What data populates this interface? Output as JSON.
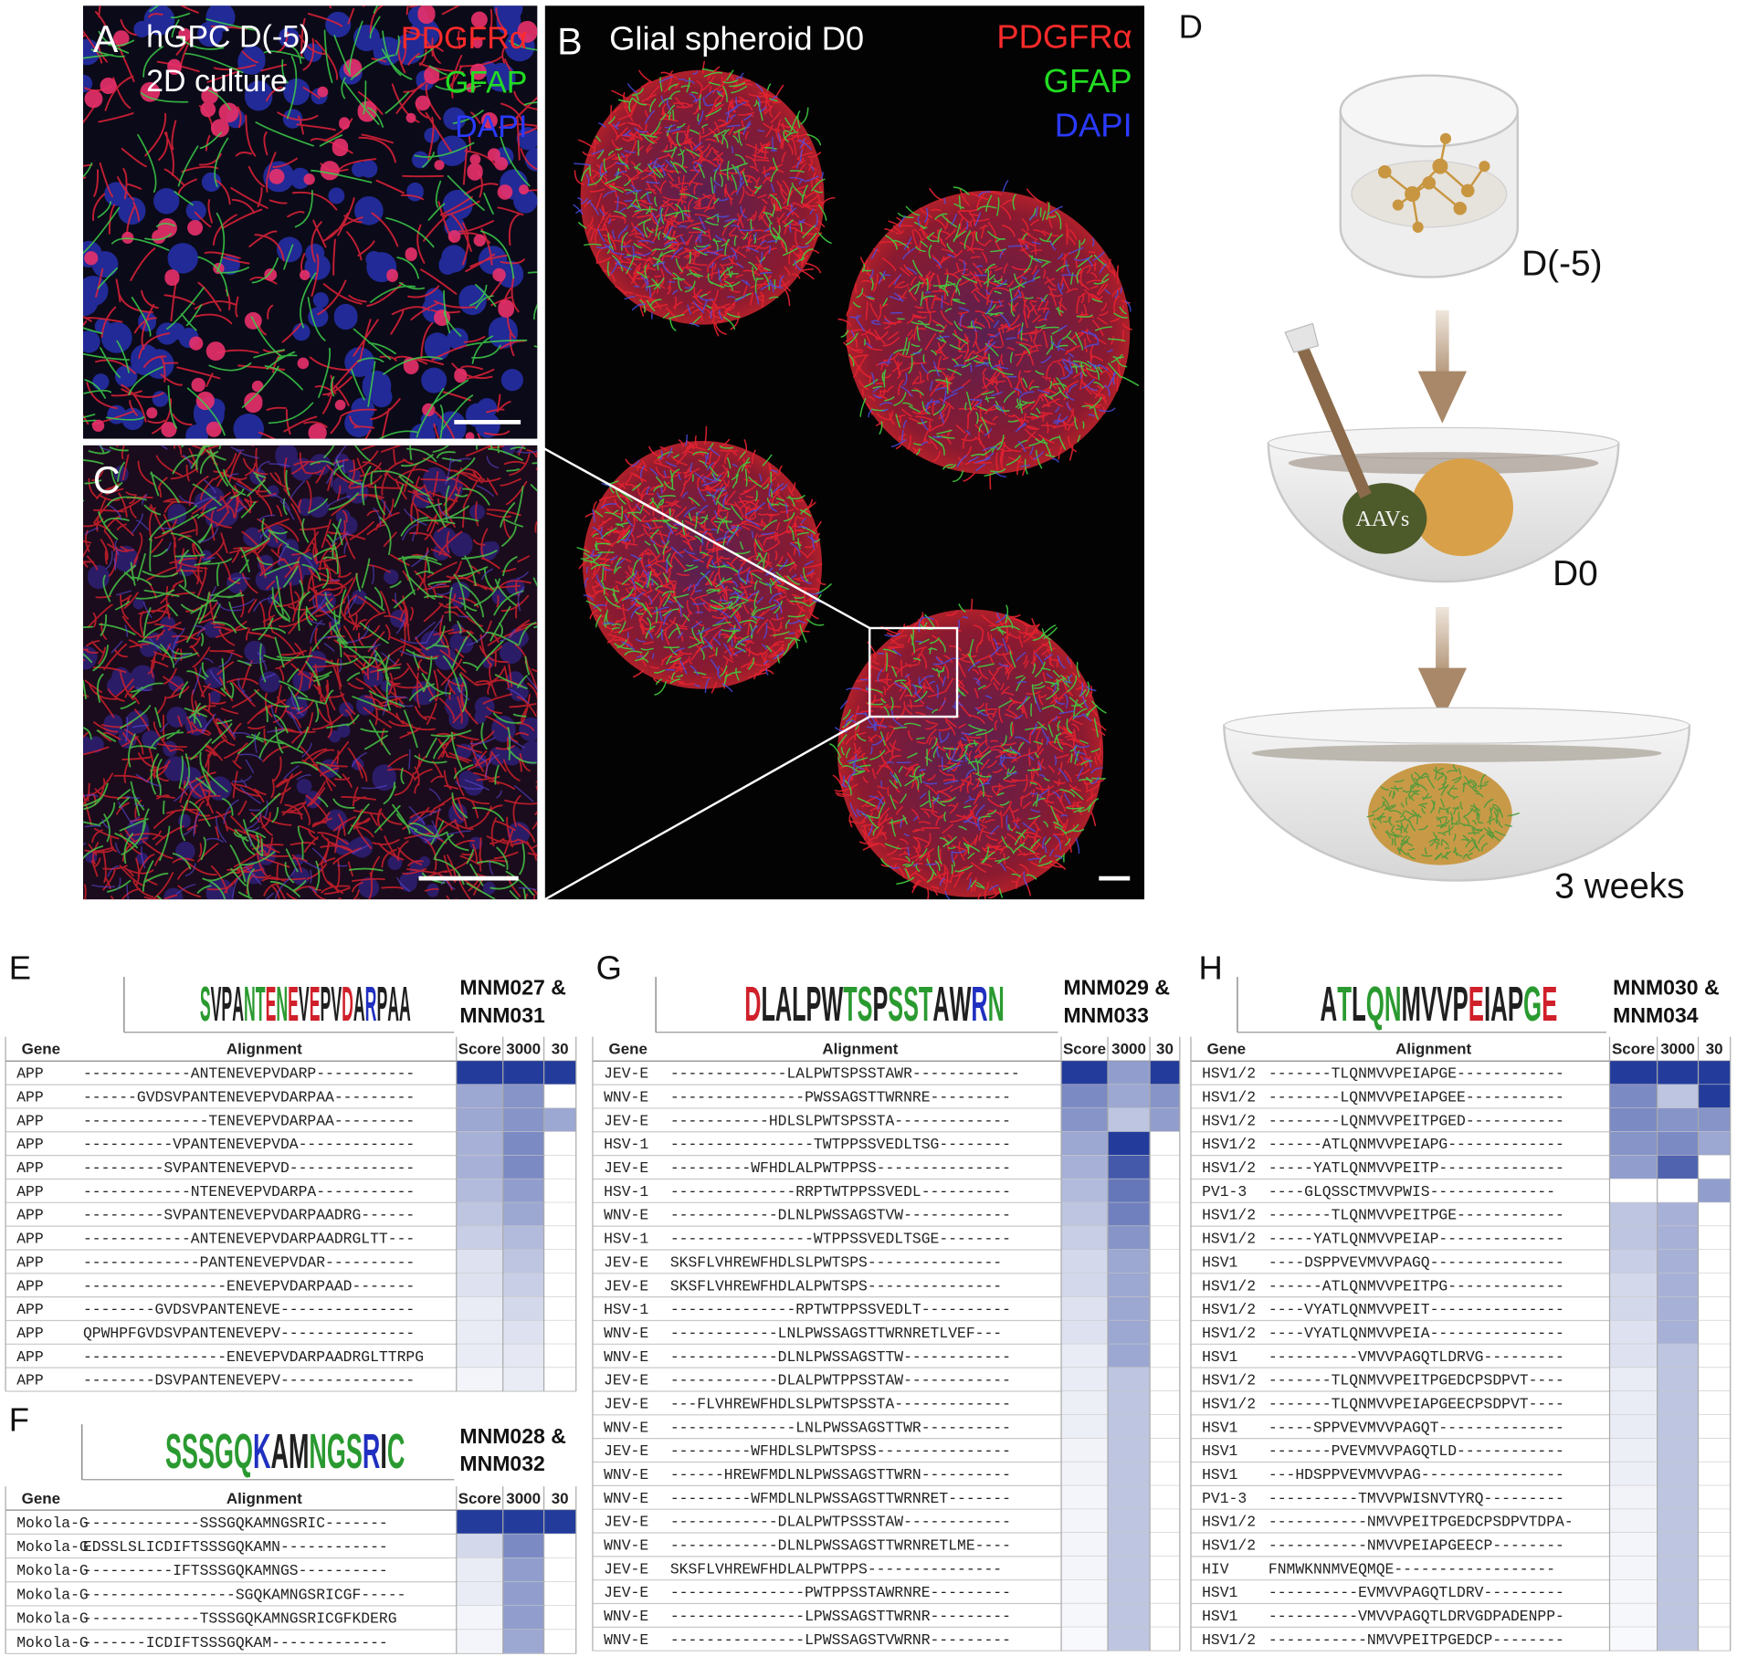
{
  "panels": {
    "A": {
      "label": "A",
      "title": [
        "hGPC D(-5)",
        "2D culture"
      ],
      "stains": [
        "PDGFRα",
        "GFAP",
        "DAPI"
      ]
    },
    "B": {
      "label": "B",
      "title": [
        "Glial spheroid D0"
      ],
      "stains": [
        "PDGFRα",
        "GFAP",
        "DAPI"
      ]
    },
    "C": {
      "label": "C"
    },
    "D": {
      "label": "D",
      "stages": [
        "D(-5)",
        "D0",
        "3 weeks"
      ],
      "vector": "AAVs"
    }
  },
  "tables": [
    {
      "label": "E",
      "logo": "SVPANTENEVEPVDARPAA",
      "title": [
        "MNM027 &",
        "MNM031"
      ],
      "columns": [
        "Gene",
        "Alignment",
        "Score",
        "3000",
        "30"
      ],
      "rows": [
        {
          "gene": "APP",
          "alignment": "------------ANTENEVEPVDARP-----------",
          "shades": [
            1,
            1,
            1
          ]
        },
        {
          "gene": "APP",
          "alignment": "------GVDSVPANTENEVEPVDARPAA---------",
          "shades": [
            0.45,
            0.55,
            0
          ]
        },
        {
          "gene": "APP",
          "alignment": "--------------TENEVEPVDARPAA---------",
          "shades": [
            0.45,
            0.55,
            0.45
          ]
        },
        {
          "gene": "APP",
          "alignment": "----------VPANTENEVEPVDA-------------",
          "shades": [
            0.4,
            0.6,
            0
          ]
        },
        {
          "gene": "APP",
          "alignment": "---------SVPANTENEVEPVD--------------",
          "shades": [
            0.4,
            0.6,
            0
          ]
        },
        {
          "gene": "APP",
          "alignment": "------------NTENEVEPVDARPA-----------",
          "shades": [
            0.35,
            0.5,
            0
          ]
        },
        {
          "gene": "APP",
          "alignment": "---------SVPANTENEVEPVDARPAADRG------",
          "shades": [
            0.3,
            0.45,
            0
          ]
        },
        {
          "gene": "APP",
          "alignment": "------------ANTENEVEPVDARPAADRGLTT---",
          "shades": [
            0.25,
            0.35,
            0
          ]
        },
        {
          "gene": "APP",
          "alignment": "-------------PANTENEVEPVDAR----------",
          "shades": [
            0.15,
            0.3,
            0
          ]
        },
        {
          "gene": "APP",
          "alignment": "----------------ENEVEPVDARPAAD-------",
          "shades": [
            0.15,
            0.25,
            0
          ]
        },
        {
          "gene": "APP",
          "alignment": "--------GVDSVPANTENEVE---------------",
          "shades": [
            0.1,
            0.2,
            0
          ]
        },
        {
          "gene": "APP",
          "alignment": "QPWHPFGVDSVPANTENEVEPV---------------",
          "shades": [
            0.1,
            0.15,
            0
          ]
        },
        {
          "gene": "APP",
          "alignment": "----------------ENEVEPVDARPAADRGLTTRPG",
          "shades": [
            0.1,
            0.12,
            0
          ]
        },
        {
          "gene": "APP",
          "alignment": "--------DSVPANTENEVEPV---------------",
          "shades": [
            0.05,
            0.1,
            0
          ]
        }
      ]
    },
    {
      "label": "F",
      "logo": "SSSGQKAMNGSRIC",
      "title": [
        "MNM028 &",
        "MNM032"
      ],
      "columns": [
        "Gene",
        "Alignment",
        "Score",
        "3000",
        "30"
      ],
      "rows": [
        {
          "gene": "Mokola-G",
          "alignment": "-------------SSSGQKAMNGSRIC-------",
          "shades": [
            1,
            1,
            1
          ]
        },
        {
          "gene": "Mokola-G",
          "alignment": "EDSSLSLICDIFTSSSGQKAMN------------",
          "shades": [
            0.2,
            0.6,
            0
          ]
        },
        {
          "gene": "Mokola-G",
          "alignment": "----------IFTSSSGQKAMNGS----------",
          "shades": [
            0.1,
            0.5,
            0
          ]
        },
        {
          "gene": "Mokola-G",
          "alignment": "-----------------SGQKAMNGSRICGF-----",
          "shades": [
            0.1,
            0.5,
            0
          ]
        },
        {
          "gene": "Mokola-G",
          "alignment": "-------------TSSSGQKAMNGSRICGFKDERG",
          "shades": [
            0.05,
            0.5,
            0
          ]
        },
        {
          "gene": "Mokola-G",
          "alignment": "-------ICDIFTSSSGQKAM-------------",
          "shades": [
            0.05,
            0.45,
            0
          ]
        }
      ]
    },
    {
      "label": "G",
      "logo": "DLALPWTSPSSTAWRN",
      "title": [
        "MNM029 &",
        "MNM033"
      ],
      "columns": [
        "Gene",
        "Alignment",
        "Score",
        "3000",
        "30"
      ],
      "rows": [
        {
          "gene": "JEV-E",
          "alignment": "-------------LALPWTSPSSTAWR------------",
          "shades": [
            1,
            0.5,
            1
          ]
        },
        {
          "gene": "WNV-E",
          "alignment": "---------------PWSSAGSTTWRNRE---------",
          "shades": [
            0.6,
            0.45,
            0.55
          ]
        },
        {
          "gene": "JEV-E",
          "alignment": "-----------HDLSLPWTSPSSTA-------------",
          "shades": [
            0.55,
            0.3,
            0.5
          ]
        },
        {
          "gene": "HSV-1",
          "alignment": "----------------TWTPPSSVEDLTSG--------",
          "shades": [
            0.45,
            1,
            0
          ]
        },
        {
          "gene": "JEV-E",
          "alignment": "---------WFHDLALPWTPPSS---------------",
          "shades": [
            0.4,
            0.85,
            0
          ]
        },
        {
          "gene": "HSV-1",
          "alignment": "--------------RRPTWTPPSSVEDL----------",
          "shades": [
            0.35,
            0.7,
            0
          ]
        },
        {
          "gene": "WNV-E",
          "alignment": "------------DLNLPWSSAGSTVW------------",
          "shades": [
            0.3,
            0.65,
            0
          ]
        },
        {
          "gene": "HSV-1",
          "alignment": "----------------WTPPSSVEDLTSGE--------",
          "shades": [
            0.25,
            0.55,
            0
          ]
        },
        {
          "gene": "JEV-E",
          "alignment": "SKSFLVHREWFHDLSLPWTSPS---------------",
          "shades": [
            0.2,
            0.45,
            0
          ]
        },
        {
          "gene": "JEV-E",
          "alignment": "SKSFLVHREWFHDLALPWTSPS---------------",
          "shades": [
            0.2,
            0.45,
            0
          ]
        },
        {
          "gene": "HSV-1",
          "alignment": "--------------RPTWTPPSSVEDLT----------",
          "shades": [
            0.15,
            0.45,
            0
          ]
        },
        {
          "gene": "WNV-E",
          "alignment": "------------LNLPWSSAGSTTWRNRETLVEF---",
          "shades": [
            0.15,
            0.45,
            0
          ]
        },
        {
          "gene": "WNV-E",
          "alignment": "------------DLNLPWSSAGSTTW------------",
          "shades": [
            0.1,
            0.45,
            0
          ]
        },
        {
          "gene": "JEV-E",
          "alignment": "------------DLALPWTPPSSTAW------------",
          "shades": [
            0.1,
            0.3,
            0
          ]
        },
        {
          "gene": "JEV-E",
          "alignment": "---FLVHREWFHDLSLPWTSPSSTA-------------",
          "shades": [
            0.08,
            0.3,
            0
          ]
        },
        {
          "gene": "WNV-E",
          "alignment": "--------------LNLPWSSAGSTTWR----------",
          "shades": [
            0.08,
            0.3,
            0
          ]
        },
        {
          "gene": "JEV-E",
          "alignment": "---------WFHDLSLPWTSPSS---------------",
          "shades": [
            0.06,
            0.3,
            0
          ]
        },
        {
          "gene": "WNV-E",
          "alignment": "------HREWFMDLNLPWSSAGSTTWRN----------",
          "shades": [
            0.06,
            0.3,
            0
          ]
        },
        {
          "gene": "WNV-E",
          "alignment": "---------WFMDLNLPWSSAGSTTWRNRET-------",
          "shades": [
            0.05,
            0.3,
            0
          ]
        },
        {
          "gene": "JEV-E",
          "alignment": "------------DLALPWTPSSSTAW------------",
          "shades": [
            0.05,
            0.3,
            0
          ]
        },
        {
          "gene": "WNV-E",
          "alignment": "------------DLNLPWSSAGSTTWRNRETLME----",
          "shades": [
            0.05,
            0.3,
            0
          ]
        },
        {
          "gene": "JEV-E",
          "alignment": "SKSFLVHREWFHDLALPWTPPS---------------",
          "shades": [
            0.05,
            0.3,
            0
          ]
        },
        {
          "gene": "JEV-E",
          "alignment": "---------------PWTPPSSTAWRNRE---------",
          "shades": [
            0.04,
            0.3,
            0
          ]
        },
        {
          "gene": "WNV-E",
          "alignment": "---------------LPWSSAGSTTWRNR---------",
          "shades": [
            0.04,
            0.3,
            0
          ]
        },
        {
          "gene": "WNV-E",
          "alignment": "---------------LPWSSAGSTVWRNR---------",
          "shades": [
            0.03,
            0.3,
            0
          ]
        }
      ]
    },
    {
      "label": "H",
      "logo": "ATLQNMVVPEIAPGE",
      "title": [
        "MNM030 &",
        "MNM034"
      ],
      "columns": [
        "Gene",
        "Alignment",
        "Score",
        "3000",
        "30"
      ],
      "rows": [
        {
          "gene": "HSV1/2",
          "alignment": "-------TLQNMVVPEIAPGE------------",
          "shades": [
            1,
            1,
            1
          ]
        },
        {
          "gene": "HSV1/2",
          "alignment": "--------LQNMVVPEIAPGEE-----------",
          "shades": [
            0.6,
            0.3,
            1
          ]
        },
        {
          "gene": "HSV1/2",
          "alignment": "--------LQNMVVPEITPGED-----------",
          "shades": [
            0.6,
            0.55,
            0.55
          ]
        },
        {
          "gene": "HSV1/2",
          "alignment": "------ATLQNMVVPEIAPG-------------",
          "shades": [
            0.55,
            0.6,
            0.45
          ]
        },
        {
          "gene": "HSV1/2",
          "alignment": "-----YATLQNMVVPEITP--------------",
          "shades": [
            0.5,
            0.8,
            0
          ]
        },
        {
          "gene": "PV1-3",
          "alignment": "----GLQSSCTMVVPWIS--------------",
          "shades": [
            0,
            0,
            0.5
          ]
        },
        {
          "gene": "HSV1/2",
          "alignment": "-------TLQNMVVPEITPGE------------",
          "shades": [
            0.3,
            0.4,
            0
          ]
        },
        {
          "gene": "HSV1/2",
          "alignment": "-----YATLQNMVVPEIAP--------------",
          "shades": [
            0.3,
            0.4,
            0
          ]
        },
        {
          "gene": "HSV1",
          "alignment": "----DSPPVEVMVVPAGQ---------------",
          "shades": [
            0.25,
            0.4,
            0
          ]
        },
        {
          "gene": "HSV1/2",
          "alignment": "------ATLQNMVVPEITPG-------------",
          "shades": [
            0.2,
            0.4,
            0
          ]
        },
        {
          "gene": "HSV1/2",
          "alignment": "----VYATLQNMVVPEIT---------------",
          "shades": [
            0.2,
            0.4,
            0
          ]
        },
        {
          "gene": "HSV1/2",
          "alignment": "----VYATLQNMVVPEIA---------------",
          "shades": [
            0.15,
            0.4,
            0
          ]
        },
        {
          "gene": "HSV1",
          "alignment": "----------VMVVPAGQTLDRVG---------",
          "shades": [
            0.15,
            0.3,
            0
          ]
        },
        {
          "gene": "HSV1/2",
          "alignment": "-------TLQNMVVPEITPGEDCPSDPVT----",
          "shades": [
            0.1,
            0.3,
            0
          ]
        },
        {
          "gene": "HSV1/2",
          "alignment": "-------TLQNMVVPEIAPGEECPSDPVT----",
          "shades": [
            0.1,
            0.3,
            0
          ]
        },
        {
          "gene": "HSV1",
          "alignment": "-----SPPVEVMVVPAGQT--------------",
          "shades": [
            0.1,
            0.3,
            0
          ]
        },
        {
          "gene": "HSV1",
          "alignment": "-------PVEVMVVPAGQTLD------------",
          "shades": [
            0.08,
            0.3,
            0
          ]
        },
        {
          "gene": "HSV1",
          "alignment": "---HDSPPVEVMVVPAG----------------",
          "shades": [
            0.08,
            0.3,
            0
          ]
        },
        {
          "gene": "PV1-3",
          "alignment": "----------TMVVPWISNVTYRQ---------",
          "shades": [
            0.06,
            0.3,
            0
          ]
        },
        {
          "gene": "HSV1/2",
          "alignment": "-----------NMVVPEITPGEDCPSDPVTDPA-",
          "shades": [
            0.06,
            0.3,
            0
          ]
        },
        {
          "gene": "HSV1/2",
          "alignment": "-----------NMVVPEIAPGEECP--------",
          "shades": [
            0.05,
            0.3,
            0
          ]
        },
        {
          "gene": "HIV",
          "alignment": "FNMWKNNMVEQMQE------------------",
          "shades": [
            0.05,
            0.3,
            0
          ]
        },
        {
          "gene": "HSV1",
          "alignment": "----------EVMVVPAGQTLDRV---------",
          "shades": [
            0.04,
            0.3,
            0
          ]
        },
        {
          "gene": "HSV1",
          "alignment": "----------VMVVPAGQTLDRVGDPADENPP-",
          "shades": [
            0.04,
            0.3,
            0
          ]
        },
        {
          "gene": "HSV1/2",
          "alignment": "-----------NMVVPEITPGEDCP--------",
          "shades": [
            0.03,
            0.3,
            0
          ]
        }
      ]
    }
  ]
}
